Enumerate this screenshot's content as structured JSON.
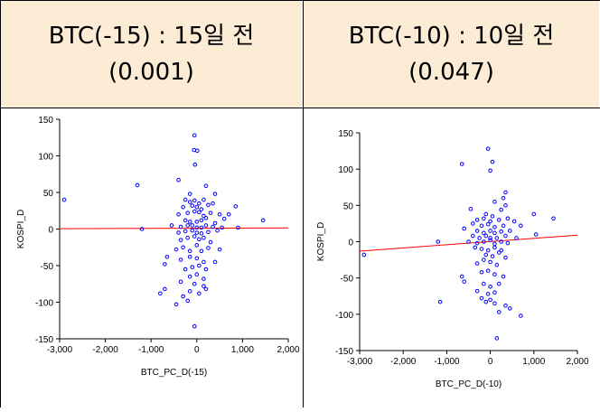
{
  "headers": [
    {
      "title": "BTC(-15) : 15일 전",
      "pvalue": "(0.001)"
    },
    {
      "title": "BTC(-10) : 10일 전",
      "pvalue": "(0.047)"
    }
  ],
  "colors": {
    "header_bg": "#fcecd6",
    "points": "#0000ff",
    "fit_line": "#ff0000",
    "axis": "#000000"
  },
  "chart_data": [
    {
      "type": "scatter",
      "title": "",
      "xlabel": "BTC_PC_D(-15)",
      "ylabel": "KOSPI_D",
      "xlim": [
        -3000,
        2000
      ],
      "ylim": [
        -150,
        150
      ],
      "xticks": [
        -3000,
        -2000,
        -1000,
        0,
        1000,
        2000
      ],
      "xtick_labels": [
        "-3,000",
        "-2,000",
        "-1,000",
        "0",
        "1,000",
        "2,000"
      ],
      "yticks": [
        150,
        100,
        50,
        0,
        -50,
        -100,
        -150
      ],
      "ytick_labels": [
        "150",
        "100",
        "50",
        "0",
        "-50",
        "-100",
        "-150"
      ],
      "fit_line": {
        "x": [
          -3000,
          2000
        ],
        "y": [
          0.5,
          1.5
        ]
      },
      "points": [
        [
          -2900,
          40
        ],
        [
          -1300,
          60
        ],
        [
          -1200,
          0
        ],
        [
          -50,
          128
        ],
        [
          -60,
          108
        ],
        [
          10,
          107
        ],
        [
          -40,
          88
        ],
        [
          -400,
          67
        ],
        [
          200,
          59
        ],
        [
          -150,
          48
        ],
        [
          400,
          48
        ],
        [
          -250,
          40
        ],
        [
          -150,
          37
        ],
        [
          -50,
          39
        ],
        [
          50,
          35
        ],
        [
          150,
          40
        ],
        [
          -300,
          30
        ],
        [
          -100,
          32
        ],
        [
          0,
          30
        ],
        [
          100,
          27
        ],
        [
          250,
          33
        ],
        [
          350,
          35
        ],
        [
          850,
          31
        ],
        [
          -400,
          20
        ],
        [
          -200,
          22
        ],
        [
          -50,
          24
        ],
        [
          50,
          23
        ],
        [
          150,
          18
        ],
        [
          300,
          22
        ],
        [
          500,
          20
        ],
        [
          700,
          20
        ],
        [
          -250,
          12
        ],
        [
          -150,
          10
        ],
        [
          0,
          10
        ],
        [
          100,
          12
        ],
        [
          200,
          15
        ],
        [
          400,
          8
        ],
        [
          600,
          14
        ],
        [
          1450,
          12
        ],
        [
          -550,
          5
        ],
        [
          -350,
          3
        ],
        [
          -200,
          5
        ],
        [
          -100,
          5
        ],
        [
          0,
          2
        ],
        [
          100,
          2
        ],
        [
          200,
          5
        ],
        [
          350,
          3
        ],
        [
          550,
          2
        ],
        [
          900,
          2
        ],
        [
          -400,
          -5
        ],
        [
          -250,
          -3
        ],
        [
          -100,
          -2
        ],
        [
          0,
          -5
        ],
        [
          100,
          -6
        ],
        [
          250,
          -4
        ],
        [
          450,
          -2
        ],
        [
          -350,
          -15
        ],
        [
          -200,
          -12
        ],
        [
          -50,
          -10
        ],
        [
          50,
          -14
        ],
        [
          150,
          -12
        ],
        [
          300,
          -18
        ],
        [
          -450,
          -28
        ],
        [
          -300,
          -25
        ],
        [
          -150,
          -30
        ],
        [
          0,
          -22
        ],
        [
          100,
          -30
        ],
        [
          250,
          -26
        ],
        [
          500,
          -28
        ],
        [
          -650,
          -38
        ],
        [
          -350,
          -42
        ],
        [
          -150,
          -38
        ],
        [
          0,
          -40
        ],
        [
          150,
          -45
        ],
        [
          400,
          -45
        ],
        [
          -700,
          -48
        ],
        [
          -250,
          -55
        ],
        [
          -100,
          -52
        ],
        [
          50,
          -50
        ],
        [
          200,
          -55
        ],
        [
          -150,
          -65
        ],
        [
          0,
          -62
        ],
        [
          150,
          -68
        ],
        [
          -350,
          -72
        ],
        [
          -50,
          -75
        ],
        [
          150,
          -78
        ],
        [
          -800,
          -88
        ],
        [
          -700,
          -82
        ],
        [
          -300,
          -92
        ],
        [
          -150,
          -85
        ],
        [
          50,
          -88
        ],
        [
          200,
          -82
        ],
        [
          -450,
          -103
        ],
        [
          -200,
          -98
        ],
        [
          -50,
          -133
        ]
      ]
    },
    {
      "type": "scatter",
      "title": "",
      "xlabel": "BTC_PC_D(-10)",
      "ylabel": "KOSPI_D",
      "xlim": [
        -3000,
        2000
      ],
      "ylim": [
        -150,
        150
      ],
      "xticks": [
        -3000,
        -2000,
        -1000,
        0,
        1000,
        2000
      ],
      "xtick_labels": [
        "-3,000",
        "-2,000",
        "-1,000",
        "0",
        "1,000",
        "2,000"
      ],
      "yticks": [
        150,
        100,
        50,
        0,
        -50,
        -100,
        -150
      ],
      "ytick_labels": [
        "150",
        "100",
        "50",
        "0",
        "-50",
        "-100",
        "-150"
      ],
      "fit_line": {
        "x": [
          -3000,
          2000
        ],
        "y": [
          -13,
          9
        ]
      },
      "points": [
        [
          -2900,
          -18
        ],
        [
          -1200,
          0
        ],
        [
          -1150,
          -83
        ],
        [
          -50,
          128
        ],
        [
          50,
          110
        ],
        [
          -650,
          107
        ],
        [
          0,
          98
        ],
        [
          350,
          68
        ],
        [
          300,
          60
        ],
        [
          100,
          55
        ],
        [
          350,
          50
        ],
        [
          -450,
          45
        ],
        [
          250,
          44
        ],
        [
          -100,
          38
        ],
        [
          50,
          35
        ],
        [
          400,
          32
        ],
        [
          1000,
          38
        ],
        [
          1450,
          32
        ],
        [
          -300,
          30
        ],
        [
          -150,
          32
        ],
        [
          0,
          28
        ],
        [
          200,
          30
        ],
        [
          550,
          28
        ],
        [
          -400,
          25
        ],
        [
          -200,
          22
        ],
        [
          -50,
          24
        ],
        [
          100,
          20
        ],
        [
          300,
          22
        ],
        [
          700,
          22
        ],
        [
          -600,
          18
        ],
        [
          -300,
          15
        ],
        [
          -150,
          12
        ],
        [
          0,
          15
        ],
        [
          100,
          12
        ],
        [
          250,
          14
        ],
        [
          450,
          15
        ],
        [
          -400,
          8
        ],
        [
          -250,
          5
        ],
        [
          -100,
          8
        ],
        [
          0,
          5
        ],
        [
          150,
          5
        ],
        [
          350,
          8
        ],
        [
          600,
          5
        ],
        [
          1050,
          10
        ],
        [
          -500,
          0
        ],
        [
          -300,
          -2
        ],
        [
          -150,
          0
        ],
        [
          0,
          2
        ],
        [
          100,
          -3
        ],
        [
          250,
          0
        ],
        [
          400,
          -2
        ],
        [
          -350,
          -8
        ],
        [
          -200,
          -10
        ],
        [
          -50,
          -12
        ],
        [
          100,
          -8
        ],
        [
          250,
          -12
        ],
        [
          -100,
          -18
        ],
        [
          50,
          -20
        ],
        [
          200,
          -15
        ],
        [
          350,
          -22
        ],
        [
          -300,
          -30
        ],
        [
          -150,
          -25
        ],
        [
          0,
          -28
        ],
        [
          150,
          -32
        ],
        [
          -650,
          -48
        ],
        [
          -600,
          -55
        ],
        [
          -200,
          -42
        ],
        [
          -50,
          -40
        ],
        [
          100,
          -45
        ],
        [
          300,
          -48
        ],
        [
          -150,
          -58
        ],
        [
          0,
          -62
        ],
        [
          200,
          -58
        ],
        [
          -300,
          -68
        ],
        [
          -50,
          -72
        ],
        [
          100,
          -70
        ],
        [
          -200,
          -78
        ],
        [
          0,
          -80
        ],
        [
          100,
          -85
        ],
        [
          -100,
          -83
        ],
        [
          350,
          -88
        ],
        [
          450,
          -92
        ],
        [
          700,
          -102
        ],
        [
          200,
          -97
        ],
        [
          150,
          -133
        ]
      ]
    }
  ]
}
